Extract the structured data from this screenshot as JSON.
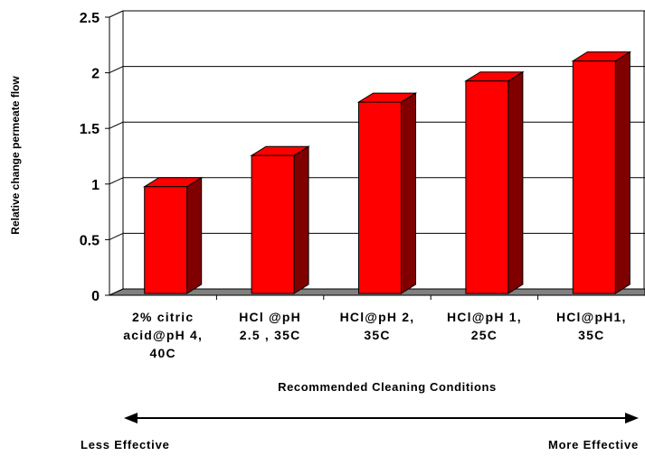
{
  "chart_data": {
    "type": "bar",
    "title": "",
    "xlabel": "Recommended Cleaning Conditions",
    "ylabel": "Relative change permeate flow",
    "ylim": [
      0,
      2.5
    ],
    "yticks": [
      "0",
      "0.5",
      "1",
      "1.5",
      "2",
      "2.5"
    ],
    "categories": [
      [
        "2% citric",
        "acid@pH 4,",
        "40C"
      ],
      [
        "HCl @pH",
        "2.5 , 35C"
      ],
      [
        "HCl@pH 2,",
        "35C"
      ],
      [
        "HCl@pH 1,",
        "25C"
      ],
      [
        "HCl@pH1,",
        "35C"
      ]
    ],
    "values": [
      0.96,
      1.24,
      1.72,
      1.91,
      2.09
    ],
    "bar_color": "#ff0000",
    "bar_side_color": "#800000",
    "floor_color": "#808080",
    "grid": true,
    "effectiveness_arrow": {
      "left_label": "Less Effective",
      "right_label": "More Effective"
    }
  }
}
